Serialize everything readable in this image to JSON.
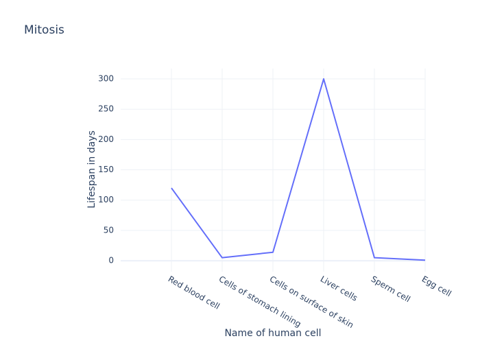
{
  "chart_data": {
    "type": "line",
    "title": "Mitosis",
    "x_label": "Name of human cell",
    "y_label": "Lifespan in days",
    "categories": [
      "Red blood cell",
      "Cells of stomach lining",
      "Cells on surface of skin",
      "Liver cells",
      "Sperm cell",
      "Egg cell"
    ],
    "series": [
      {
        "color": "#636efa",
        "values": [
          120,
          5,
          14,
          300,
          5,
          1
        ]
      }
    ],
    "ylim": [
      -18,
      317
    ],
    "yticks": [
      0,
      50,
      100,
      150,
      200,
      250,
      300
    ],
    "grid": true
  }
}
